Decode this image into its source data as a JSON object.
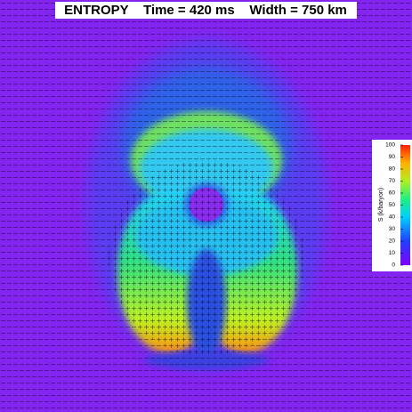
{
  "header": {
    "title": "ENTROPY    Time = 420 ms    Width = 750 km"
  },
  "colorbar": {
    "label": "S (k/baryon)",
    "range": [
      0,
      100
    ],
    "ticks": [
      0,
      10,
      20,
      30,
      40,
      50,
      60,
      70,
      80,
      90,
      100
    ]
  }
}
